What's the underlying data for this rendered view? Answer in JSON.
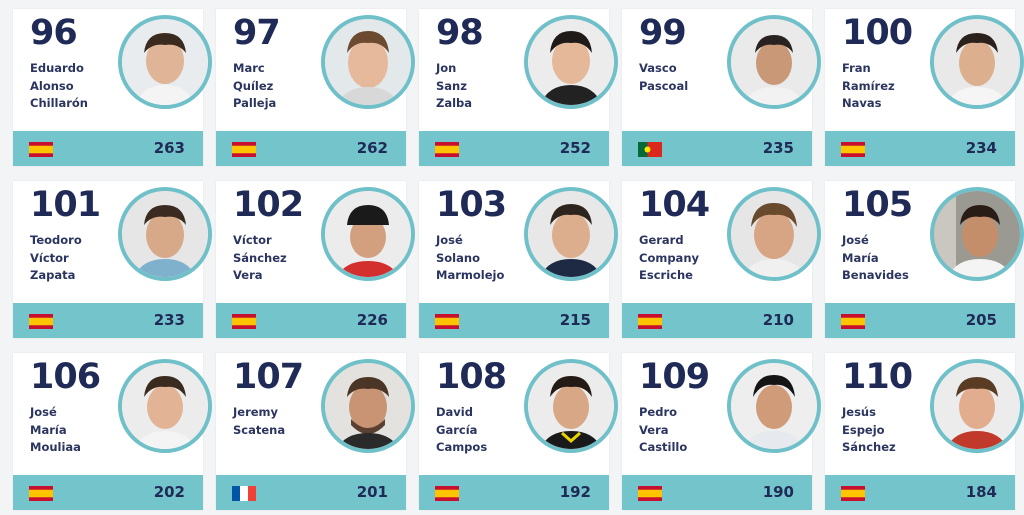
{
  "players": [
    {
      "rank": "96",
      "first": "Eduardo",
      "second": "Alonso",
      "third": "Chillarón",
      "points": "263",
      "flag": "spain"
    },
    {
      "rank": "97",
      "first": "Marc",
      "second": "Quílez",
      "third": "Palleja",
      "points": "262",
      "flag": "spain"
    },
    {
      "rank": "98",
      "first": "Jon",
      "second": "Sanz",
      "third": "Zalba",
      "points": "252",
      "flag": "spain"
    },
    {
      "rank": "99",
      "first": "Vasco",
      "second": "Pascoal",
      "third": "",
      "points": "235",
      "flag": "portugal"
    },
    {
      "rank": "100",
      "first": "Fran",
      "second": "Ramírez",
      "third": "Navas",
      "points": "234",
      "flag": "spain"
    },
    {
      "rank": "101",
      "first": "Teodoro",
      "second": "Víctor",
      "third": "Zapata",
      "points": "233",
      "flag": "spain"
    },
    {
      "rank": "102",
      "first": "Víctor",
      "second": "Sánchez",
      "third": "Vera",
      "points": "226",
      "flag": "spain"
    },
    {
      "rank": "103",
      "first": "José",
      "second": "Solano",
      "third": "Marmolejo",
      "points": "215",
      "flag": "spain"
    },
    {
      "rank": "104",
      "first": "Gerard",
      "second": "Company",
      "third": "Escriche",
      "points": "210",
      "flag": "spain"
    },
    {
      "rank": "105",
      "first": "José",
      "second": "María",
      "third": "Benavides",
      "points": "205",
      "flag": "spain"
    },
    {
      "rank": "106",
      "first": "José",
      "second": "María",
      "third": "Mouliaa",
      "points": "202",
      "flag": "spain"
    },
    {
      "rank": "107",
      "first": "Jeremy",
      "second": "Scatena",
      "third": "",
      "points": "201",
      "flag": "france"
    },
    {
      "rank": "108",
      "first": "David",
      "second": "García",
      "third": "Campos",
      "points": "192",
      "flag": "spain"
    },
    {
      "rank": "109",
      "first": "Pedro",
      "second": "Vera",
      "third": "Castillo",
      "points": "190",
      "flag": "spain"
    },
    {
      "rank": "110",
      "first": "Jesús",
      "second": "Espejo",
      "third": "Sánchez",
      "points": "184",
      "flag": "spain"
    }
  ],
  "colors": {
    "accent": "#74c4cc",
    "ring": "#6fc0c9",
    "text": "#1f2a56"
  }
}
